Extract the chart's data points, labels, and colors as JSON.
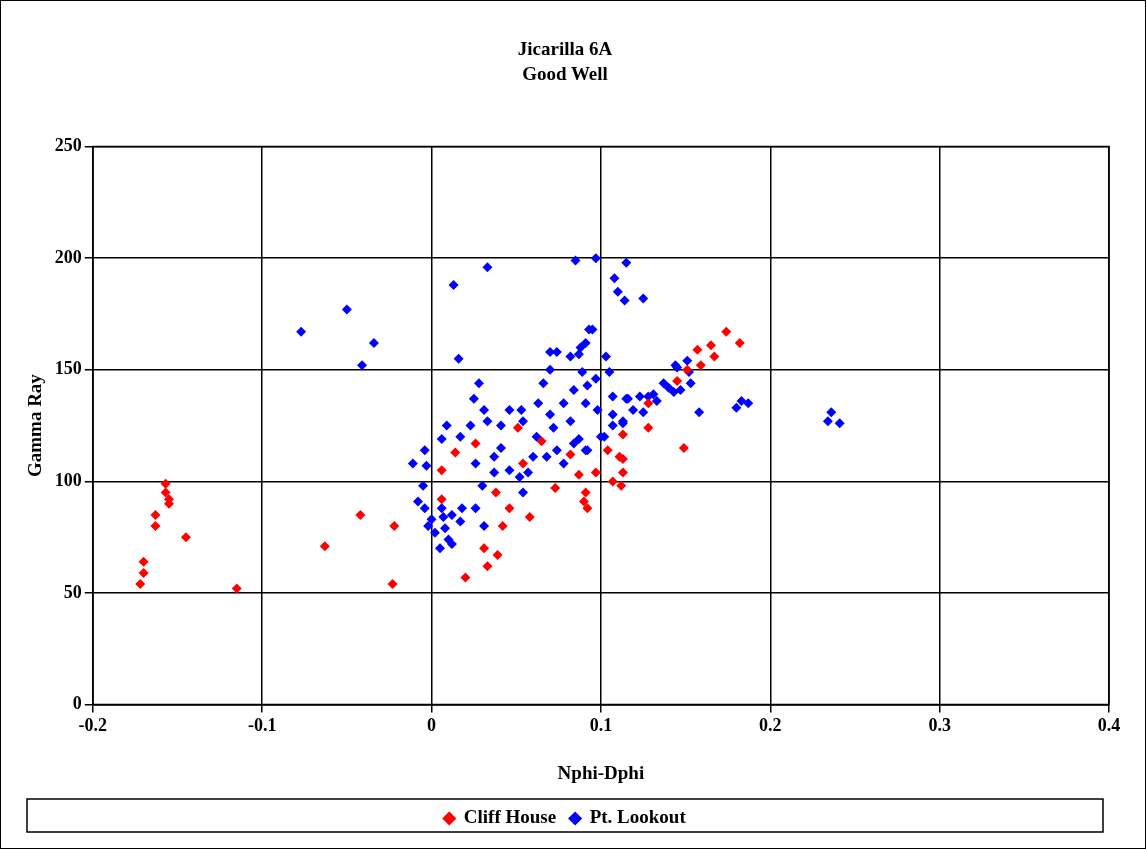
{
  "chart_data": {
    "type": "scatter",
    "title": "Jicarilla 6A",
    "subtitle": "Good Well",
    "xlabel": "Nphi-Dphi",
    "ylabel": "Gamma Ray",
    "xlim": [
      -0.2,
      0.4
    ],
    "xticks": [
      -0.2,
      -0.1,
      0,
      0.1,
      0.2,
      0.3,
      0.4
    ],
    "ylim": [
      0,
      250
    ],
    "yticks": [
      0,
      50,
      100,
      150,
      200,
      250
    ],
    "grid": true,
    "legend": "bottom",
    "marker": "diamond",
    "series": [
      {
        "name": "Cliff House",
        "color": "#ff0000",
        "x": [
          -0.157,
          -0.157,
          -0.155,
          -0.155,
          -0.163,
          -0.163,
          -0.17,
          -0.17,
          -0.172,
          -0.145,
          -0.115,
          -0.063,
          -0.042,
          -0.022,
          -0.023,
          0.006,
          0.014,
          0.026,
          0.006,
          0.038,
          0.031,
          0.039,
          0.033,
          0.02,
          0.046,
          0.042,
          0.058,
          0.051,
          0.065,
          0.054,
          0.073,
          0.087,
          0.09,
          0.092,
          0.082,
          0.097,
          0.104,
          0.107,
          0.113,
          0.112,
          0.128,
          0.174,
          0.182,
          0.165,
          0.157,
          0.167,
          0.159,
          0.151,
          0.145,
          0.128,
          0.149,
          0.113,
          0.111,
          0.113,
          0.091
        ],
        "values": [
          99,
          95,
          92,
          90,
          85,
          80,
          64,
          59,
          54,
          75,
          52,
          71,
          85,
          80,
          54,
          105,
          113,
          117,
          92,
          95,
          70,
          67,
          62,
          57,
          88,
          80,
          84,
          124,
          118,
          108,
          97,
          103,
          91,
          88,
          112,
          104,
          114,
          100,
          110,
          98,
          124,
          167,
          162,
          161,
          159,
          156,
          152,
          150,
          145,
          135,
          115,
          121,
          111,
          104,
          95
        ]
      },
      {
        "name": "Pt. Lookout",
        "color": "#0000ff",
        "x": [
          -0.077,
          -0.05,
          -0.034,
          -0.041,
          0.013,
          0.033,
          0.016,
          0.085,
          0.097,
          0.115,
          0.108,
          0.11,
          0.114,
          0.125,
          0.093,
          0.088,
          0.07,
          -0.011,
          -0.004,
          -0.003,
          -0.005,
          0.009,
          0.006,
          0.017,
          0.023,
          0.026,
          0.028,
          0.025,
          0.031,
          0.033,
          0.046,
          0.053,
          0.054,
          0.041,
          0.037,
          0.041,
          0.037,
          0.046,
          0.03,
          0.026,
          0.031,
          0.052,
          0.054,
          0.057,
          0.066,
          0.063,
          0.07,
          0.074,
          0.082,
          0.087,
          0.091,
          0.095,
          0.089,
          0.097,
          0.103,
          0.105,
          0.07,
          0.078,
          0.072,
          0.082,
          0.091,
          0.098,
          0.107,
          0.116,
          0.123,
          0.131,
          0.092,
          0.084,
          0.074,
          0.068,
          0.078,
          0.062,
          0.06,
          0.107,
          0.113,
          0.119,
          0.1,
          0.084,
          0.092,
          -0.008,
          -0.004,
          0,
          0.002,
          0.005,
          0.008,
          0.012,
          0.017,
          0.018,
          0.006,
          -0.002,
          0.01,
          0.012,
          0.007,
          0.144,
          0.151,
          0.137,
          0.143,
          0.153,
          0.128,
          0.125,
          0.158,
          0.183,
          0.187,
          0.18,
          0.236,
          0.234,
          0.241,
          0.113,
          0.107,
          0.115,
          0.102,
          0.091,
          0.087,
          0.14,
          0.147,
          0.145,
          0.152,
          0.133
        ],
        "values": [
          167,
          177,
          162,
          152,
          188,
          196,
          155,
          199,
          200,
          198,
          191,
          185,
          181,
          182,
          168,
          160,
          158,
          108,
          114,
          107,
          98,
          125,
          119,
          120,
          125,
          108,
          144,
          137,
          132,
          127,
          132,
          132,
          127,
          125,
          111,
          115,
          104,
          105,
          98,
          88,
          80,
          102,
          95,
          104,
          144,
          135,
          150,
          158,
          156,
          157,
          162,
          168,
          149,
          146,
          156,
          149,
          130,
          135,
          124,
          127,
          135,
          132,
          138,
          137,
          138,
          139,
          114,
          117,
          114,
          111,
          108,
          120,
          111,
          125,
          127,
          132,
          120,
          141,
          143,
          91,
          88,
          83,
          77,
          70,
          79,
          85,
          82,
          88,
          88,
          80,
          74,
          72,
          84,
          152,
          154,
          144,
          140,
          144,
          138,
          131,
          131,
          136,
          135,
          133,
          131,
          127,
          126,
          126,
          130,
          137,
          120,
          114,
          119,
          142,
          141,
          151,
          149,
          136
        ]
      }
    ]
  }
}
